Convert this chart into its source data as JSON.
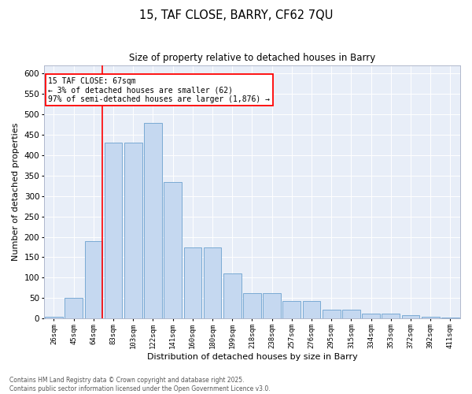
{
  "title_line1": "15, TAF CLOSE, BARRY, CF62 7QU",
  "title_line2": "Size of property relative to detached houses in Barry",
  "xlabel": "Distribution of detached houses by size in Barry",
  "ylabel": "Number of detached properties",
  "categories": [
    "26sqm",
    "45sqm",
    "64sqm",
    "83sqm",
    "103sqm",
    "122sqm",
    "141sqm",
    "160sqm",
    "180sqm",
    "199sqm",
    "218sqm",
    "238sqm",
    "257sqm",
    "276sqm",
    "295sqm",
    "315sqm",
    "334sqm",
    "353sqm",
    "372sqm",
    "392sqm",
    "411sqm"
  ],
  "values": [
    5,
    50,
    190,
    430,
    430,
    480,
    335,
    175,
    175,
    110,
    62,
    62,
    43,
    43,
    22,
    22,
    12,
    12,
    8,
    5,
    3
  ],
  "bar_color": "#c5d8f0",
  "bar_edge_color": "#7aaad4",
  "background_color": "#e8eef8",
  "ylim": [
    0,
    620
  ],
  "yticks": [
    0,
    50,
    100,
    150,
    200,
    250,
    300,
    350,
    400,
    450,
    500,
    550,
    600
  ],
  "redline_x": 2.45,
  "annotation_title": "15 TAF CLOSE: 67sqm",
  "annotation_line1": "← 3% of detached houses are smaller (62)",
  "annotation_line2": "97% of semi-detached houses are larger (1,876) →",
  "footer_line1": "Contains HM Land Registry data © Crown copyright and database right 2025.",
  "footer_line2": "Contains public sector information licensed under the Open Government Licence v3.0."
}
